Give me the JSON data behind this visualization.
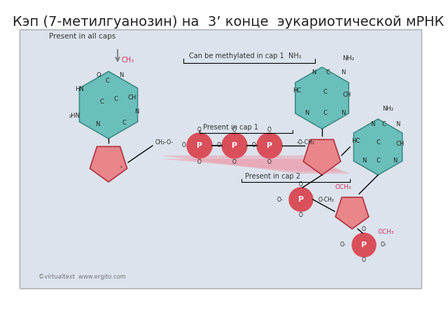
{
  "title": "Кэп (7-метилгуанозин) на  3’ конце  эукариотической мРНК",
  "title_fontsize": 14,
  "bg_color": "#ffffff",
  "box_bg": "#dde3ec",
  "box_edge": "#aaaaaa",
  "teal": "#6bbfbb",
  "red_p": "#d94f5a",
  "pink_pent": "#e8868a",
  "pink_light": "#f2b0b5",
  "text_dark": "#222222",
  "text_red": "#d03060",
  "text_gray": "#555555",
  "arrow_gray": "#888888",
  "label_all": "Present in all caps",
  "label_meth": "Can be methylated in cap 1",
  "label_nh2_1": "NH₂",
  "label_cap1": "Present in cap 1",
  "label_cap2": "Present in cap 2",
  "label_och3": "OCH₃",
  "label_copyright": "©virtualtext  www.ergito.com"
}
